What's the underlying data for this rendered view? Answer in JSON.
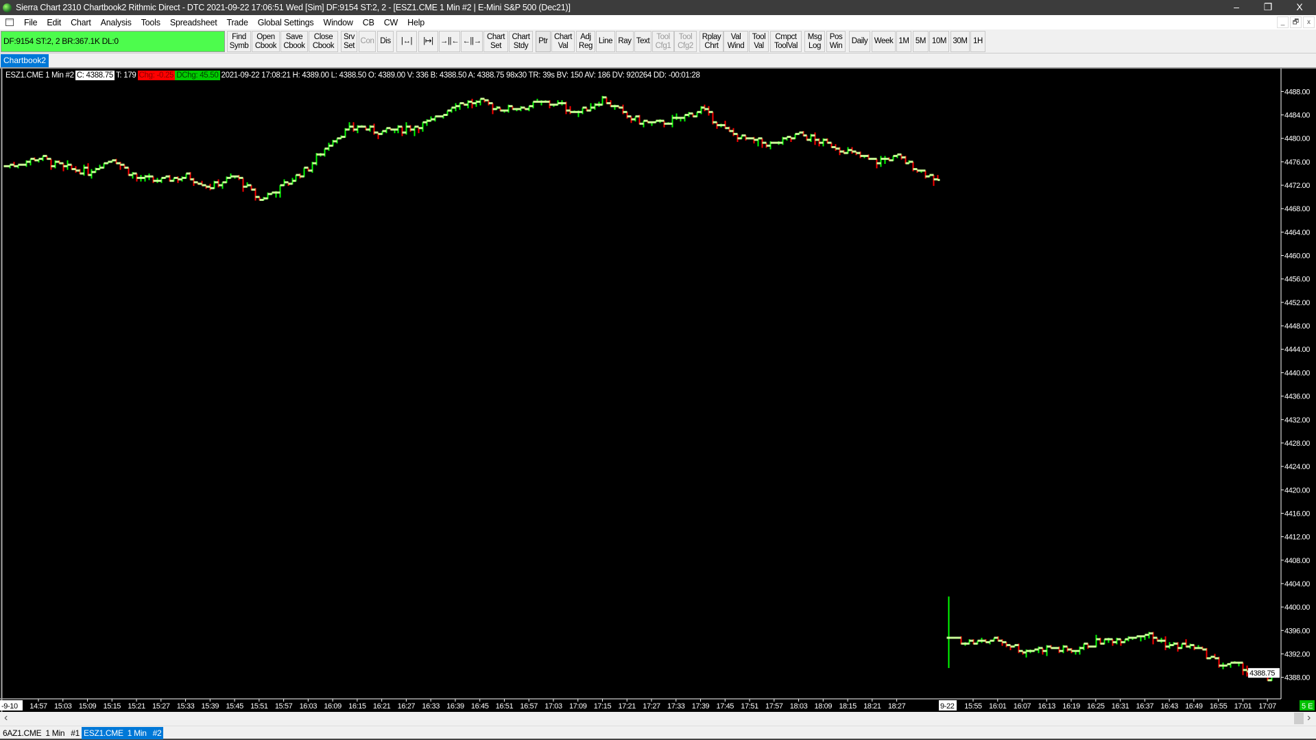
{
  "window": {
    "title": "Sierra Chart 2310 Chartbook2  Rithmic Direct - DTC 2021-09-22  17:06:51 Wed [Sim]  DF:9154  ST:2, 2 - [ESZ1.CME  1 Min   #2 | E-Mini S&P 500 (Dec21)]",
    "minimize": "–",
    "restore": "❐",
    "close": "X"
  },
  "menu": [
    "File",
    "Edit",
    "Chart",
    "Analysis",
    "Tools",
    "Spreadsheet",
    "Trade",
    "Global Settings",
    "Window",
    "CB",
    "CW",
    "Help"
  ],
  "mdi": {
    "minimize": "_",
    "restore": "🗗",
    "close": "x"
  },
  "toolbar": {
    "status": "DF:9154  ST:2, 2  BR:367.1K  DL:0",
    "status_color": "#4dfc4d",
    "buttons": [
      {
        "label": "Find\nSymb"
      },
      {
        "label": "Open\nCbook"
      },
      {
        "label": "Save\nCbook"
      },
      {
        "label": "Close\nCbook"
      },
      {
        "label": "Srv\nSet"
      },
      {
        "label": "Con",
        "disabled": true
      },
      {
        "label": "Dis"
      },
      {
        "label": "|↔|",
        "icon": "zoom-width-icon"
      },
      {
        "label": "|↦|",
        "icon": "zoom-fit-icon"
      },
      {
        "label": "→||←",
        "icon": "compress-bars-icon"
      },
      {
        "label": "←||→",
        "icon": "expand-bars-icon"
      },
      {
        "label": "Chart\nSet"
      },
      {
        "label": "Chart\nStdy"
      },
      {
        "label": "Ptr",
        "selected": true
      },
      {
        "label": "Chart\nVal"
      },
      {
        "label": "Adj\nReg"
      },
      {
        "label": "Line"
      },
      {
        "label": "Ray"
      },
      {
        "label": "Text"
      },
      {
        "label": "Tool\nCfg1",
        "disabled": true
      },
      {
        "label": "Tool\nCfg2",
        "disabled": true
      },
      {
        "label": "Rplay\nChrt"
      },
      {
        "label": "Val\nWind"
      },
      {
        "label": "Tool\nVal"
      },
      {
        "label": "Cmpct\nToolVal"
      },
      {
        "label": "Msg\nLog"
      },
      {
        "label": "Pos\nWin"
      },
      {
        "label": "Daily"
      },
      {
        "label": "Week"
      },
      {
        "label": "1M"
      },
      {
        "label": "5M"
      },
      {
        "label": "10M"
      },
      {
        "label": "30M"
      },
      {
        "label": "1H"
      }
    ]
  },
  "chartbook_tab": "Chartbook2",
  "info": {
    "symbol": "ESZ1.CME  1 Min   #2",
    "close": "C: 4388.75",
    "ticks": "T: 179",
    "chg": "Chg: -0.25",
    "dchg": "DChg: 45.50",
    "rest": "2021-09-22 17:08:21 H: 4389.00 L: 4388.50 O: 4389.00 V: 336 B: 4388.50 A: 4388.75 98x30 TR: 39s BV: 150 AV: 186 DV: 920264 DD: -00:01:28"
  },
  "chart_data": {
    "type": "ohlc",
    "symbol": "ESZ1.CME",
    "interval": "1 Min",
    "ylim": [
      4384.3,
      4491.6
    ],
    "y_ticks": [
      "4488.00",
      "4484.00",
      "4480.00",
      "4476.00",
      "4472.00",
      "4468.00",
      "4464.00",
      "4460.00",
      "4456.00",
      "4452.00",
      "4448.00",
      "4444.00",
      "4440.00",
      "4436.00",
      "4432.00",
      "4428.00",
      "4424.00",
      "4420.00",
      "4416.00",
      "4412.00",
      "4408.00",
      "4404.00",
      "4400.00",
      "4396.00",
      "4392.00",
      "4388.00"
    ],
    "last_price": "4388.75",
    "up_color": "#00ff00",
    "down_color": "#ff0000",
    "tick_color": "#ccff99",
    "sessions": [
      {
        "date_label": "-9-10",
        "start": "14:49",
        "end": "18:37",
        "time_labels": [
          "14:57",
          "15:03",
          "15:09",
          "15:15",
          "15:21",
          "15:27",
          "15:33",
          "15:39",
          "15:45",
          "15:51",
          "15:57",
          "16:03",
          "16:09",
          "16:15",
          "16:21",
          "16:27",
          "16:33",
          "16:39",
          "16:45",
          "16:51",
          "16:57",
          "17:03",
          "17:09",
          "17:15",
          "17:21",
          "17:27",
          "17:33",
          "17:39",
          "17:45",
          "17:51",
          "17:57",
          "18:03",
          "18:09",
          "18:15",
          "18:21",
          "18:27"
        ],
        "close_path": [
          [
            "14:49",
            4475.2
          ],
          [
            "14:57",
            4476.7
          ],
          [
            "15:03",
            4475.0
          ],
          [
            "15:09",
            4474.2
          ],
          [
            "15:15",
            4476.7
          ],
          [
            "15:21",
            4473.2
          ],
          [
            "15:27",
            4472.8
          ],
          [
            "15:33",
            4473.5
          ],
          [
            "15:39",
            4471.8
          ],
          [
            "15:45",
            4473.5
          ],
          [
            "15:51",
            4469.5
          ],
          [
            "15:57",
            4472.0
          ],
          [
            "16:03",
            4475.0
          ],
          [
            "16:09",
            4480.0
          ],
          [
            "16:15",
            4482.1
          ],
          [
            "16:21",
            4481.0
          ],
          [
            "16:27",
            4481.8
          ],
          [
            "16:33",
            4482.8
          ],
          [
            "16:39",
            4486.1
          ],
          [
            "16:45",
            4486.1
          ],
          [
            "16:51",
            4485.0
          ],
          [
            "16:57",
            4485.6
          ],
          [
            "17:03",
            4486.1
          ],
          [
            "17:09",
            4484.4
          ],
          [
            "17:15",
            4486.7
          ],
          [
            "17:21",
            4483.6
          ],
          [
            "17:27",
            4482.4
          ],
          [
            "17:33",
            4483.1
          ],
          [
            "17:39",
            4485.0
          ],
          [
            "17:45",
            4481.4
          ],
          [
            "17:51",
            4479.5
          ],
          [
            "17:57",
            4479.0
          ],
          [
            "18:03",
            4480.7
          ],
          [
            "18:09",
            4479.3
          ],
          [
            "18:15",
            4477.8
          ],
          [
            "18:21",
            4476.1
          ],
          [
            "18:27",
            4476.7
          ],
          [
            "18:37",
            4472.9
          ]
        ]
      },
      {
        "date_label": "9-22",
        "start": "15:49",
        "end": "17:08",
        "time_labels": [
          "15:55",
          "16:01",
          "16:07",
          "16:13",
          "16:19",
          "16:25",
          "16:31",
          "16:37",
          "16:43",
          "16:49",
          "16:55",
          "17:01",
          "17:07"
        ],
        "close_path": [
          [
            "15:49",
            4394.7
          ],
          [
            "15:55",
            4394.0
          ],
          [
            "16:01",
            4394.4
          ],
          [
            "16:07",
            4392.6
          ],
          [
            "16:13",
            4393.0
          ],
          [
            "16:19",
            4392.6
          ],
          [
            "16:25",
            4394.0
          ],
          [
            "16:31",
            4394.7
          ],
          [
            "16:37",
            4395.4
          ],
          [
            "16:43",
            4393.5
          ],
          [
            "16:49",
            4393.2
          ],
          [
            "16:55",
            4390.4
          ],
          [
            "17:01",
            4389.7
          ],
          [
            "17:07",
            4387.5
          ],
          [
            "17:08",
            4388.75
          ]
        ]
      }
    ]
  },
  "corner_badge": "5 E",
  "scroll": {
    "left": "‹",
    "right": "›"
  },
  "bottom_tabs": [
    {
      "label": "6AZ1.CME  1 Min   #1",
      "active": false
    },
    {
      "label": "ESZ1.CME  1 Min   #2",
      "active": true
    }
  ]
}
